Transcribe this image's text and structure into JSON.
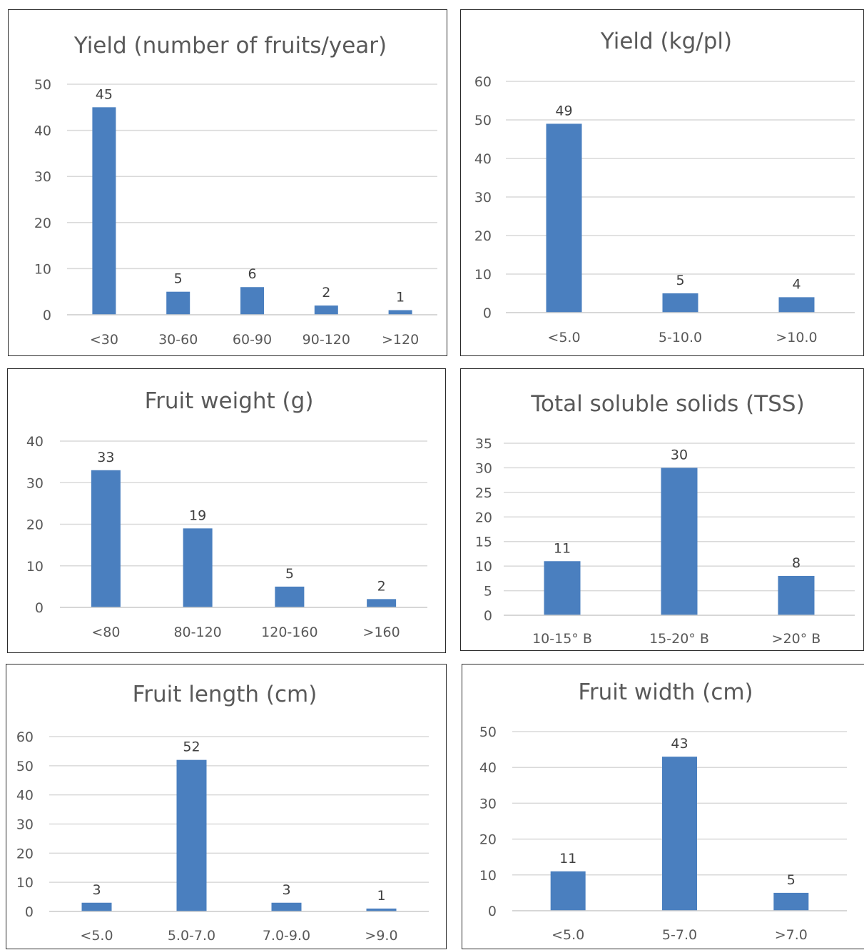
{
  "colors": {
    "bar": "#4a7fbf",
    "grid": "#d9d9d9",
    "axis_text": "#595959",
    "border": "#2b2b2b"
  },
  "chart_data": [
    {
      "type": "bar",
      "title": "Yield (number of fruits/year)",
      "categories": [
        "<30",
        "30-60",
        "60-90",
        "90-120",
        ">120"
      ],
      "values": [
        45,
        5,
        6,
        2,
        1
      ],
      "ylim": [
        0,
        50
      ],
      "yticks": [
        0,
        10,
        20,
        30,
        40,
        50
      ],
      "grid": true
    },
    {
      "type": "bar",
      "title": "Yield (kg/pl)",
      "categories": [
        "<5.0",
        "5-10.0",
        ">10.0"
      ],
      "values": [
        49,
        5,
        4
      ],
      "ylim": [
        0,
        60
      ],
      "yticks": [
        0,
        10,
        20,
        30,
        40,
        50,
        60
      ],
      "grid": true
    },
    {
      "type": "bar",
      "title": "Fruit weight (g)",
      "categories": [
        "<80",
        "80-120",
        "120-160",
        ">160"
      ],
      "values": [
        33,
        19,
        5,
        2
      ],
      "ylim": [
        0,
        40
      ],
      "yticks": [
        0,
        10,
        20,
        30,
        40
      ],
      "grid": true
    },
    {
      "type": "bar",
      "title": "Total soluble solids (TSS)",
      "categories": [
        "10-15° B",
        "15-20° B",
        ">20° B"
      ],
      "values": [
        11,
        30,
        8
      ],
      "ylim": [
        0,
        35
      ],
      "yticks": [
        0,
        5,
        10,
        15,
        20,
        25,
        30,
        35
      ],
      "grid": true
    },
    {
      "type": "bar",
      "title": "Fruit length (cm)",
      "categories": [
        "<5.0",
        "5.0-7.0",
        "7.0-9.0",
        ">9.0"
      ],
      "values": [
        3,
        52,
        3,
        1
      ],
      "ylim": [
        0,
        60
      ],
      "yticks": [
        0,
        10,
        20,
        30,
        40,
        50,
        60
      ],
      "grid": true
    },
    {
      "type": "bar",
      "title": "Fruit width (cm)",
      "categories": [
        "<5.0",
        "5-7.0",
        ">7.0"
      ],
      "values": [
        11,
        43,
        5
      ],
      "ylim": [
        0,
        50
      ],
      "yticks": [
        0,
        10,
        20,
        30,
        40,
        50
      ],
      "grid": true
    }
  ]
}
